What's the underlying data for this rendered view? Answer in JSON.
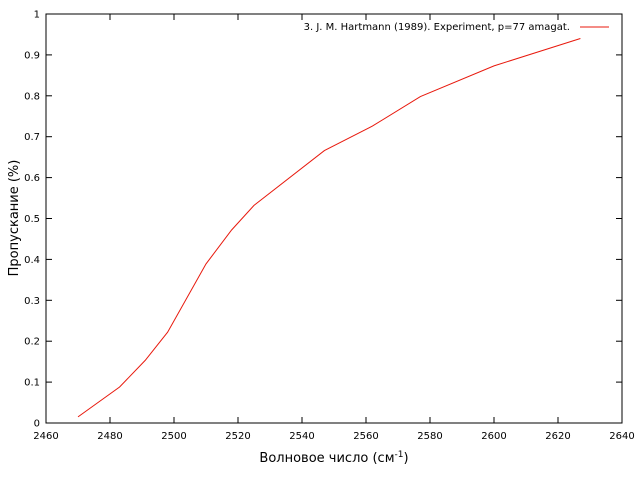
{
  "chart_data": {
    "type": "line",
    "title": "",
    "xlabel": "Волновое число (см",
    "xlabel_sup": "-1",
    "xlabel_tail": ")",
    "ylabel": "Пропускание (%)",
    "xlim": [
      2460,
      2640
    ],
    "ylim": [
      0,
      1
    ],
    "xticks": [
      2460,
      2480,
      2500,
      2520,
      2540,
      2560,
      2580,
      2600,
      2620,
      2640
    ],
    "yticks": [
      0,
      0.1,
      0.2,
      0.3,
      0.4,
      0.5,
      0.6,
      0.7,
      0.8,
      0.9,
      1
    ],
    "grid": false,
    "legend_position": "top-right",
    "series": [
      {
        "name": "3. J. M. Hartmann (1989). Experiment, p=77 amagat.",
        "color": "#e8190d",
        "x": [
          2470,
          2483,
          2491,
          2498,
          2510,
          2518,
          2525,
          2547,
          2562,
          2577,
          2600,
          2627
        ],
        "y": [
          0.015,
          0.088,
          0.153,
          0.222,
          0.389,
          0.472,
          0.532,
          0.666,
          0.726,
          0.798,
          0.873,
          0.94
        ]
      }
    ]
  }
}
